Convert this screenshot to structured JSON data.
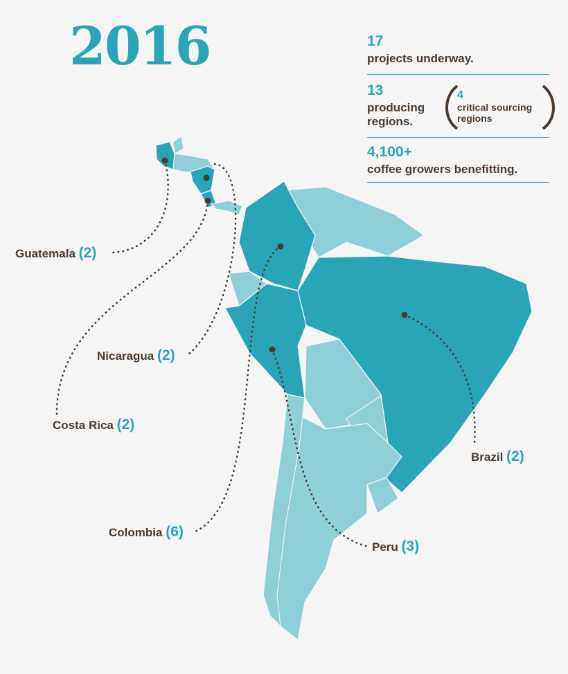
{
  "header": {
    "title": "2016"
  },
  "stats": [
    {
      "number": "17",
      "text": "projects underway."
    },
    {
      "number": "13",
      "text": "producing regions.",
      "aside": {
        "number": "4",
        "text": "critical sourcing regions"
      }
    },
    {
      "number": "4,100+",
      "text": "coffee growers benefitting."
    }
  ],
  "countries": [
    {
      "name": "Guatemala",
      "count": "(2)"
    },
    {
      "name": "Nicaragua",
      "count": "(2)"
    },
    {
      "name": "Costa Rica",
      "count": "(2)"
    },
    {
      "name": "Colombia",
      "count": "(6)"
    },
    {
      "name": "Peru",
      "count": "(3)"
    },
    {
      "name": "Brazil",
      "count": "(2)"
    }
  ]
}
